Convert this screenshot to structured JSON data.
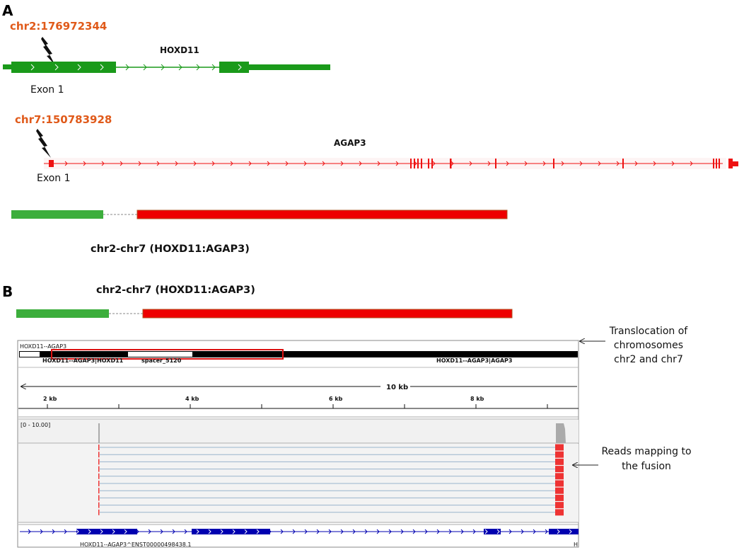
{
  "panel_a": {
    "label": "A",
    "breakpoint1": "chr2:176972344",
    "gene1": "HOXD11",
    "exon1_label": "Exon 1",
    "breakpoint2": "chr7:150783928",
    "gene2": "AGAP3",
    "exon2_label": "Exon 1",
    "fusion_label": "chr2-chr7 (HOXD11:AGAP3)"
  },
  "panel_b": {
    "label": "B",
    "fusion_label": "chr2-chr7 (HOXD11:AGAP3)",
    "track_title": "HOXD11--AGAP3",
    "seg_left": "HOXD11--AGAP3|HOXD11",
    "seg_mid": "spacer_5120",
    "seg_right": "HOXD11--AGAP3|AGAP3",
    "span_label": "10 kb",
    "ticks": [
      "2 kb",
      "4 kb",
      "6 kb",
      "8 kb"
    ],
    "coverage_range": "[0 - 10.00]",
    "transcript_label": "HOXD11--AGAP3^ENST00000498438.1",
    "transcript_end": "H",
    "anno_translocation": [
      "Translocation of",
      "chromosomes",
      "chr2 and chr7"
    ],
    "anno_reads": [
      "Reads mapping to",
      "the fusion"
    ],
    "read_count": 10
  },
  "colors": {
    "hoxd11": "#1a9a1a",
    "agap3": "#ee1111",
    "fusion_green": "#3cae3c",
    "fusion_red": "#ee0000",
    "coord_text": "#e05a1a",
    "transcript": "#0000b0",
    "read_line": "#9ab4cc"
  },
  "icons": [
    "lightning-bolt-icon",
    "arrow-left-icon"
  ]
}
